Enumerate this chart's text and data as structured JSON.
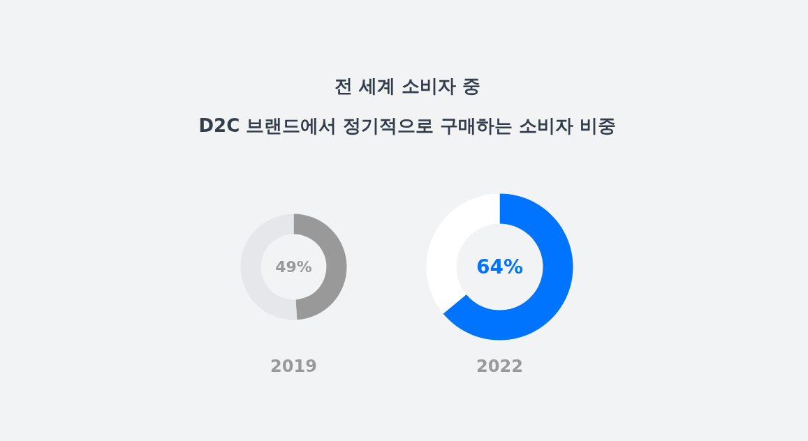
{
  "chart_data": [
    {
      "type": "donut",
      "title": "전 세계 소비자 중\nD2C 브랜드에서 정기적으로 구매하는 소비자 비중",
      "xlabel": "2019",
      "categories": [
        null,
        null
      ],
      "values": [
        49,
        51
      ],
      "colors": [
        "#999999",
        "#e5e7ea"
      ],
      "annotations": [
        "49%"
      ]
    },
    {
      "type": "donut",
      "xlabel": "2022",
      "categories": [
        null,
        null
      ],
      "values": [
        64,
        36
      ],
      "colors": [
        "#0073ff",
        "#ffffff"
      ],
      "annotations": [
        "64%"
      ]
    }
  ]
}
